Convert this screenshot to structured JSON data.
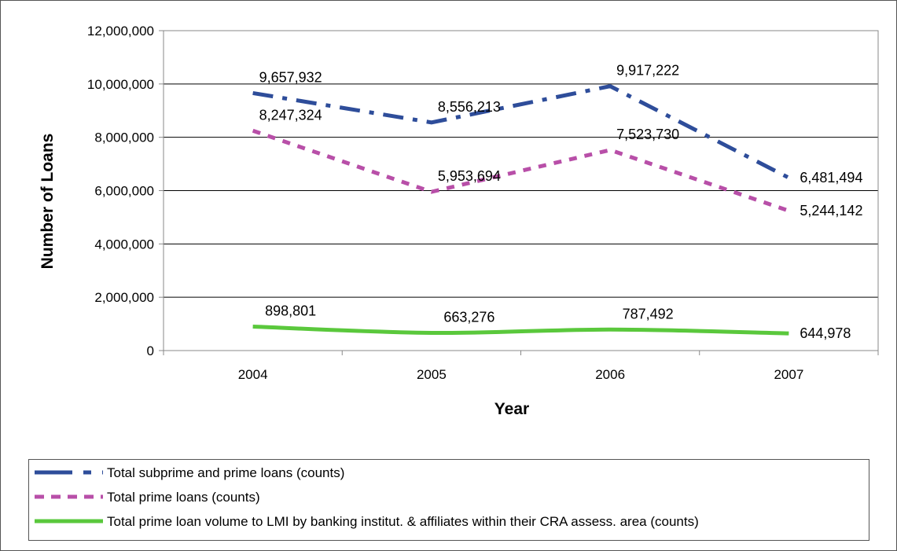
{
  "chart_data": {
    "type": "line",
    "title": "",
    "xlabel": "Year",
    "ylabel": "Number of Loans",
    "categories": [
      "2004",
      "2005",
      "2006",
      "2007"
    ],
    "ylim": [
      0,
      12000000
    ],
    "yticks": [
      0,
      2000000,
      4000000,
      6000000,
      8000000,
      10000000,
      12000000
    ],
    "ytick_labels": [
      "0",
      "2,000,000",
      "4,000,000",
      "6,000,000",
      "8,000,000",
      "10,000,000",
      "12,000,000"
    ],
    "grid": true,
    "legend_position": "bottom",
    "series": [
      {
        "name": "Total subprime and prime loans (counts)",
        "values": [
          9657932,
          8556213,
          9917222,
          6481494
        ],
        "labels": [
          "9,657,932",
          "8,556,213",
          "9,917,222",
          "6,481,494"
        ],
        "color": "#2E4D9A",
        "style": "dash-dot"
      },
      {
        "name": "Total prime loans (counts)",
        "values": [
          8247324,
          5953694,
          7523730,
          5244142
        ],
        "labels": [
          "8,247,324",
          "5,953,694",
          "7,523,730",
          "5,244,142"
        ],
        "color": "#B84FA8",
        "style": "dashed"
      },
      {
        "name": "Total prime loan volume to LMI by banking institut. & affiliates within their CRA assess. area (counts)",
        "values": [
          898801,
          663276,
          787492,
          644978
        ],
        "labels": [
          "898,801",
          "663,276",
          "787,492",
          "644,978"
        ],
        "color": "#5AC83C",
        "style": "solid-smooth"
      }
    ]
  }
}
